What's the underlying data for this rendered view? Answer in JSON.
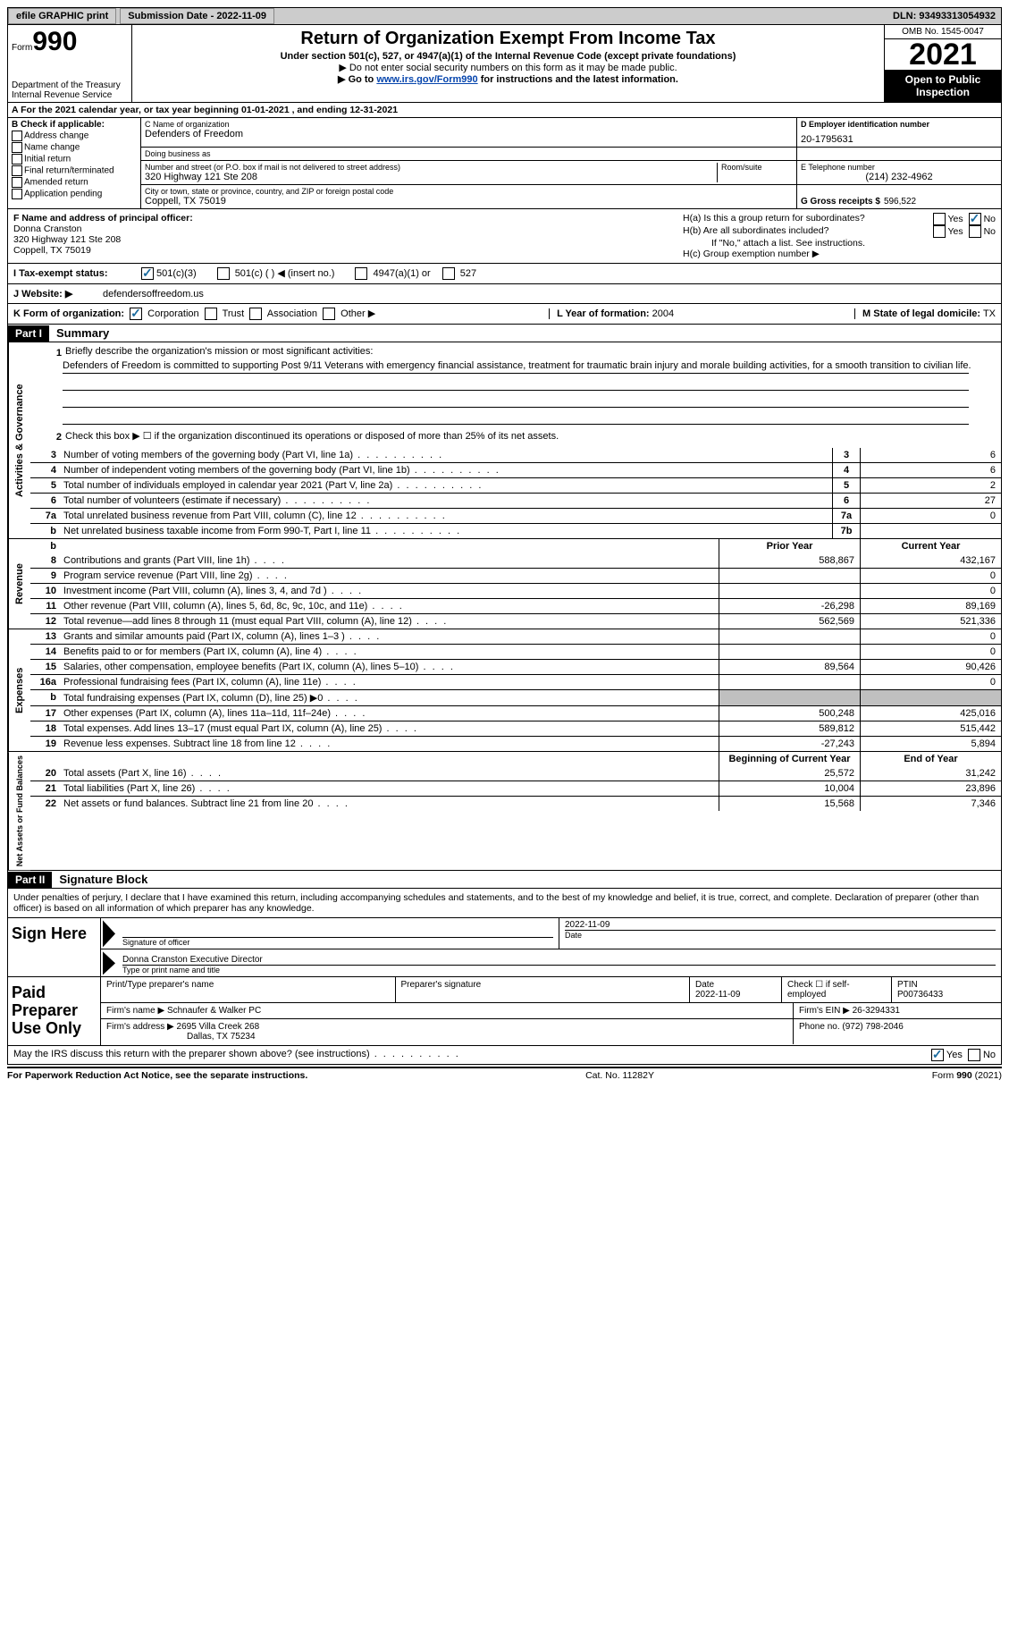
{
  "topbar": {
    "efile_btn": "efile GRAPHIC print",
    "submission_label": "Submission Date - 2022-11-09",
    "dln": "DLN: 93493313054932"
  },
  "header": {
    "form_label": "Form",
    "form_number": "990",
    "dept": "Department of the Treasury",
    "irs": "Internal Revenue Service",
    "title": "Return of Organization Exempt From Income Tax",
    "sub1": "Under section 501(c), 527, or 4947(a)(1) of the Internal Revenue Code (except private foundations)",
    "sub2": "▶ Do not enter social security numbers on this form as it may be made public.",
    "sub3_prefix": "▶ Go to ",
    "sub3_link": "www.irs.gov/Form990",
    "sub3_suffix": " for instructions and the latest information.",
    "omb": "OMB No. 1545-0047",
    "year": "2021",
    "otp": "Open to Public Inspection"
  },
  "row_a": "A For the 2021 calendar year, or tax year beginning 01-01-2021   , and ending 12-31-2021",
  "check_b": {
    "header": "B Check if applicable:",
    "opts": [
      "Address change",
      "Name change",
      "Initial return",
      "Final return/terminated",
      "Amended return",
      "Application pending"
    ]
  },
  "org": {
    "name_label": "C Name of organization",
    "name": "Defenders of Freedom",
    "dba_label": "Doing business as",
    "dba": "",
    "street_label": "Number and street (or P.O. box if mail is not delivered to street address)",
    "room_label": "Room/suite",
    "street": "320 Highway 121 Ste 208",
    "city_label": "City or town, state or province, country, and ZIP or foreign postal code",
    "city": "Coppell, TX  75019"
  },
  "ein": {
    "label": "D Employer identification number",
    "value": "20-1795631"
  },
  "phone": {
    "label": "E Telephone number",
    "value": "(214) 232-4962"
  },
  "gross": {
    "label": "G Gross receipts $",
    "value": "596,522"
  },
  "officer": {
    "label": "F  Name and address of principal officer:",
    "name": "Donna Cranston",
    "street": "320 Highway 121 Ste 208",
    "city": "Coppell, TX  75019"
  },
  "h": {
    "a": "H(a)  Is this a group return for subordinates?",
    "b": "H(b)  Are all subordinates included?",
    "note": "If \"No,\" attach a list. See instructions.",
    "c": "H(c)  Group exemption number ▶"
  },
  "tax_status": {
    "label": "I  Tax-exempt status:",
    "opts": [
      "501(c)(3)",
      "501(c) (  ) ◀ (insert no.)",
      "4947(a)(1) or",
      "527"
    ]
  },
  "website": {
    "label": "J  Website: ▶",
    "url": "defendersoffreedom.us"
  },
  "k": {
    "label": "K Form of organization:",
    "opts": [
      "Corporation",
      "Trust",
      "Association",
      "Other ▶"
    ],
    "l_label": "L Year of formation:",
    "l_val": "2004",
    "m_label": "M State of legal domicile:",
    "m_val": "TX"
  },
  "part1": {
    "num": "Part I",
    "title": "Summary",
    "q1_intro": "Briefly describe the organization's mission or most significant activities:",
    "q1_text": "Defenders of Freedom is committed to supporting Post 9/11 Veterans with emergency financial assistance, treatment for traumatic brain injury and morale building activities, for a smooth transition to civilian life.",
    "q2": "Check this box ▶ ☐  if the organization discontinued its operations or disposed of more than 25% of its net assets.",
    "prior_hdr": "Prior Year",
    "current_hdr": "Current Year",
    "boy_hdr": "Beginning of Current Year",
    "eoy_hdr": "End of Year",
    "lines_gov": [
      {
        "n": "3",
        "d": "Number of voting members of the governing body (Part VI, line 1a)",
        "box": "3",
        "v": "6"
      },
      {
        "n": "4",
        "d": "Number of independent voting members of the governing body (Part VI, line 1b)",
        "box": "4",
        "v": "6"
      },
      {
        "n": "5",
        "d": "Total number of individuals employed in calendar year 2021 (Part V, line 2a)",
        "box": "5",
        "v": "2"
      },
      {
        "n": "6",
        "d": "Total number of volunteers (estimate if necessary)",
        "box": "6",
        "v": "27"
      },
      {
        "n": "7a",
        "d": "Total unrelated business revenue from Part VIII, column (C), line 12",
        "box": "7a",
        "v": "0"
      },
      {
        "n": "b",
        "d": "Net unrelated business taxable income from Form 990-T, Part I, line 11",
        "box": "7b",
        "v": ""
      }
    ],
    "lines_rev": [
      {
        "n": "8",
        "d": "Contributions and grants (Part VIII, line 1h)",
        "py": "588,867",
        "cy": "432,167"
      },
      {
        "n": "9",
        "d": "Program service revenue (Part VIII, line 2g)",
        "py": "",
        "cy": "0"
      },
      {
        "n": "10",
        "d": "Investment income (Part VIII, column (A), lines 3, 4, and 7d )",
        "py": "",
        "cy": "0"
      },
      {
        "n": "11",
        "d": "Other revenue (Part VIII, column (A), lines 5, 6d, 8c, 9c, 10c, and 11e)",
        "py": "-26,298",
        "cy": "89,169"
      },
      {
        "n": "12",
        "d": "Total revenue—add lines 8 through 11 (must equal Part VIII, column (A), line 12)",
        "py": "562,569",
        "cy": "521,336"
      }
    ],
    "lines_exp": [
      {
        "n": "13",
        "d": "Grants and similar amounts paid (Part IX, column (A), lines 1–3 )",
        "py": "",
        "cy": "0"
      },
      {
        "n": "14",
        "d": "Benefits paid to or for members (Part IX, column (A), line 4)",
        "py": "",
        "cy": "0"
      },
      {
        "n": "15",
        "d": "Salaries, other compensation, employee benefits (Part IX, column (A), lines 5–10)",
        "py": "89,564",
        "cy": "90,426"
      },
      {
        "n": "16a",
        "d": "Professional fundraising fees (Part IX, column (A), line 11e)",
        "py": "",
        "cy": "0"
      },
      {
        "n": "b",
        "d": "Total fundraising expenses (Part IX, column (D), line 25) ▶0",
        "py": "shaded",
        "cy": "shaded"
      },
      {
        "n": "17",
        "d": "Other expenses (Part IX, column (A), lines 11a–11d, 11f–24e)",
        "py": "500,248",
        "cy": "425,016"
      },
      {
        "n": "18",
        "d": "Total expenses. Add lines 13–17 (must equal Part IX, column (A), line 25)",
        "py": "589,812",
        "cy": "515,442"
      },
      {
        "n": "19",
        "d": "Revenue less expenses. Subtract line 18 from line 12",
        "py": "-27,243",
        "cy": "5,894"
      }
    ],
    "lines_net": [
      {
        "n": "20",
        "d": "Total assets (Part X, line 16)",
        "py": "25,572",
        "cy": "31,242"
      },
      {
        "n": "21",
        "d": "Total liabilities (Part X, line 26)",
        "py": "10,004",
        "cy": "23,896"
      },
      {
        "n": "22",
        "d": "Net assets or fund balances. Subtract line 21 from line 20",
        "py": "15,568",
        "cy": "7,346"
      }
    ]
  },
  "part2": {
    "num": "Part II",
    "title": "Signature Block",
    "decl": "Under penalties of perjury, I declare that I have examined this return, including accompanying schedules and statements, and to the best of my knowledge and belief, it is true, correct, and complete. Declaration of preparer (other than officer) is based on all information of which preparer has any knowledge.",
    "sign_here": "Sign Here",
    "sig_officer": "Signature of officer",
    "sig_date": "2022-11-09",
    "date_label": "Date",
    "name_title": "Donna Cranston  Executive Director",
    "name_title_label": "Type or print name and title",
    "paid": "Paid Preparer Use Only",
    "prep_name_label": "Print/Type preparer's name",
    "prep_sig_label": "Preparer's signature",
    "prep_date": "2022-11-09",
    "check_if": "Check ☐ if self-employed",
    "ptin_label": "PTIN",
    "ptin": "P00736433",
    "firm_name_label": "Firm's name    ▶",
    "firm_name": "Schnaufer & Walker PC",
    "firm_ein_label": "Firm's EIN ▶",
    "firm_ein": "26-3294331",
    "firm_addr_label": "Firm's address ▶",
    "firm_addr1": "2695 Villa Creek 268",
    "firm_addr2": "Dallas, TX  75234",
    "firm_phone_label": "Phone no.",
    "firm_phone": "(972) 798-2046",
    "discuss": "May the IRS discuss this return with the preparer shown above? (see instructions)"
  },
  "footer": {
    "left": "For Paperwork Reduction Act Notice, see the separate instructions.",
    "mid": "Cat. No. 11282Y",
    "right": "Form 990 (2021)"
  },
  "labels": {
    "yes": "Yes",
    "no": "No"
  },
  "sides": {
    "gov": "Activities & Governance",
    "rev": "Revenue",
    "exp": "Expenses",
    "net": "Net Assets or Fund Balances"
  }
}
